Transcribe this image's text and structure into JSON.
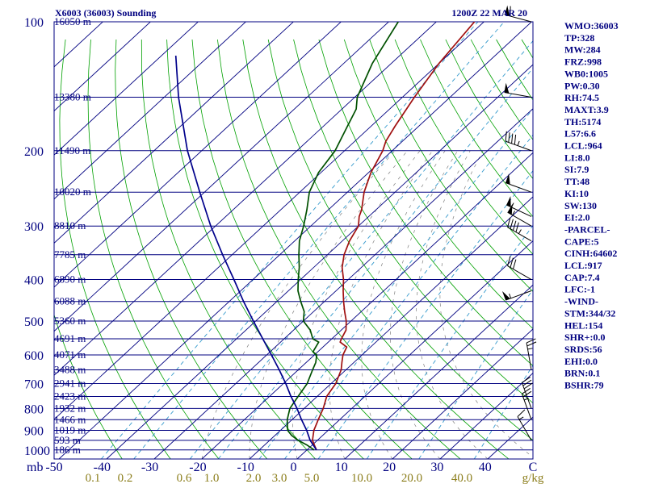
{
  "chart_data": {
    "type": "line",
    "title": "X6003 (36003) Sounding",
    "datetime": "1200Z 22 MAR 20",
    "pressure_ticks": [
      "100",
      "200",
      "300",
      "400",
      "500",
      "600",
      "700",
      "800",
      "900",
      "1000"
    ],
    "pressure_unit": "mb",
    "height_labels": [
      {
        "p": 100,
        "label": "16050 m"
      },
      {
        "p": 150,
        "label": "13380 m"
      },
      {
        "p": 200,
        "label": "11490 m"
      },
      {
        "p": 250,
        "label": "10020 m"
      },
      {
        "p": 300,
        "label": "8810 m"
      },
      {
        "p": 350,
        "label": "7785 m"
      },
      {
        "p": 400,
        "label": "6890 m"
      },
      {
        "p": 450,
        "label": "6088 m"
      },
      {
        "p": 500,
        "label": "5360 m"
      },
      {
        "p": 550,
        "label": "4691 m"
      },
      {
        "p": 600,
        "label": "4071 m"
      },
      {
        "p": 650,
        "label": "3488 m"
      },
      {
        "p": 700,
        "label": "2941 m"
      },
      {
        "p": 750,
        "label": "2423 m"
      },
      {
        "p": 800,
        "label": "1932 m"
      },
      {
        "p": 850,
        "label": "1466 m"
      },
      {
        "p": 900,
        "label": "1019 m"
      },
      {
        "p": 950,
        "label": "593 m"
      },
      {
        "p": 1000,
        "label": "186 m"
      }
    ],
    "temperature_ticks": [
      "-50",
      "-40",
      "-30",
      "-20",
      "-10",
      "0",
      "10",
      "20",
      "30",
      "40",
      "C"
    ],
    "mixing_ratio_ticks": [
      "0.1",
      "0.2",
      "0.6",
      "1.0",
      "2.0",
      "3.0",
      "5.0",
      "10.0",
      "20.0",
      "40.0",
      "g/kg"
    ],
    "series": [
      {
        "name": "Temperature",
        "color": "#a01010",
        "points": [
          [
            1000,
            2
          ],
          [
            975,
            0.5
          ],
          [
            950,
            -1
          ],
          [
            925,
            -2
          ],
          [
            900,
            -3
          ],
          [
            850,
            -4.5
          ],
          [
            800,
            -6
          ],
          [
            750,
            -8
          ],
          [
            700,
            -9
          ],
          [
            650,
            -11
          ],
          [
            625,
            -12.5
          ],
          [
            600,
            -14
          ],
          [
            575,
            -15
          ],
          [
            560,
            -17.5
          ],
          [
            550,
            -18
          ],
          [
            525,
            -19
          ],
          [
            500,
            -21
          ],
          [
            475,
            -23.5
          ],
          [
            450,
            -26
          ],
          [
            425,
            -28.5
          ],
          [
            400,
            -31
          ],
          [
            375,
            -34
          ],
          [
            350,
            -36.5
          ],
          [
            325,
            -38.5
          ],
          [
            300,
            -40
          ],
          [
            285,
            -42
          ],
          [
            275,
            -43
          ],
          [
            250,
            -46.5
          ],
          [
            225,
            -49.5
          ],
          [
            200,
            -52
          ],
          [
            190,
            -53.5
          ],
          [
            175,
            -55
          ],
          [
            150,
            -57.5
          ],
          [
            125,
            -60
          ],
          [
            100,
            -62
          ]
        ]
      },
      {
        "name": "Dewpoint",
        "color": "#005000",
        "points": [
          [
            1000,
            1.5
          ],
          [
            975,
            -1
          ],
          [
            950,
            -4
          ],
          [
            925,
            -6.5
          ],
          [
            900,
            -8.5
          ],
          [
            850,
            -11
          ],
          [
            800,
            -13
          ],
          [
            750,
            -14
          ],
          [
            700,
            -15
          ],
          [
            650,
            -17
          ],
          [
            625,
            -18
          ],
          [
            600,
            -19.5
          ],
          [
            590,
            -21
          ],
          [
            560,
            -22
          ],
          [
            550,
            -24
          ],
          [
            525,
            -26.5
          ],
          [
            500,
            -30
          ],
          [
            475,
            -32
          ],
          [
            450,
            -35
          ],
          [
            425,
            -38
          ],
          [
            400,
            -40.5
          ],
          [
            375,
            -43
          ],
          [
            350,
            -46
          ],
          [
            325,
            -49
          ],
          [
            300,
            -51.5
          ],
          [
            275,
            -54.5
          ],
          [
            250,
            -58
          ],
          [
            225,
            -60.5
          ],
          [
            200,
            -62
          ],
          [
            175,
            -65
          ],
          [
            160,
            -67
          ],
          [
            150,
            -69.5
          ],
          [
            125,
            -74
          ],
          [
            100,
            -78
          ]
        ]
      },
      {
        "name": "Parcel",
        "color": "#00008b",
        "points": [
          [
            1000,
            2
          ],
          [
            950,
            -1.5
          ],
          [
            900,
            -4.5
          ],
          [
            850,
            -8
          ],
          [
            800,
            -11.5
          ],
          [
            750,
            -15.5
          ],
          [
            700,
            -19.5
          ],
          [
            650,
            -24
          ],
          [
            600,
            -29
          ],
          [
            550,
            -34.5
          ],
          [
            500,
            -40.5
          ],
          [
            450,
            -47
          ],
          [
            400,
            -54
          ],
          [
            350,
            -62
          ],
          [
            300,
            -71
          ],
          [
            250,
            -81
          ],
          [
            200,
            -93
          ],
          [
            150,
            -107
          ],
          [
            120,
            -117
          ]
        ]
      }
    ],
    "wind_barbs": [
      {
        "p": 100,
        "dir": 285,
        "kt": 60
      },
      {
        "p": 150,
        "dir": 280,
        "kt": 50
      },
      {
        "p": 200,
        "dir": 290,
        "kt": 45
      },
      {
        "p": 250,
        "dir": 290,
        "kt": 50
      },
      {
        "p": 285,
        "dir": 295,
        "kt": 55
      },
      {
        "p": 300,
        "dir": 300,
        "kt": 55
      },
      {
        "p": 325,
        "dir": 300,
        "kt": 45
      },
      {
        "p": 400,
        "dir": 300,
        "kt": 30
      },
      {
        "p": 425,
        "dir": 250,
        "kt": 55
      },
      {
        "p": 650,
        "dir": 350,
        "kt": 25
      },
      {
        "p": 800,
        "dir": 340,
        "kt": 30
      },
      {
        "p": 850,
        "dir": 340,
        "kt": 25
      },
      {
        "p": 950,
        "dir": 330,
        "kt": 15
      }
    ],
    "indices": [
      "WMO:36003",
      "TP:328",
      "MW:284",
      "FRZ:998",
      "WB0:1005",
      "PW:0.30",
      "RH:74.5",
      "MAXT:3.9",
      "TH:5174",
      "L57:6.6",
      "LCL:964",
      "LI:8.0",
      "SI:7.9",
      "TT:48",
      "KI:10",
      "SW:130",
      "EI:2.0",
      "-PARCEL-",
      "CAPE:5",
      "CINH:64602",
      "LCL:917",
      "CAP:7.4",
      "LFC:-1",
      "-WIND-",
      "STM:344/32",
      "HEL:154",
      "SHR+:0.0",
      "SRDS:56",
      "EHI:0.0",
      "BRN:0.1",
      "BSHR:79"
    ]
  },
  "colors": {
    "isobar": "#000080",
    "isotherm": "#000080",
    "dry_adiabat": "#00a000",
    "mixing_ratio": "#3399cc",
    "moist_adiabat": "#808080"
  }
}
